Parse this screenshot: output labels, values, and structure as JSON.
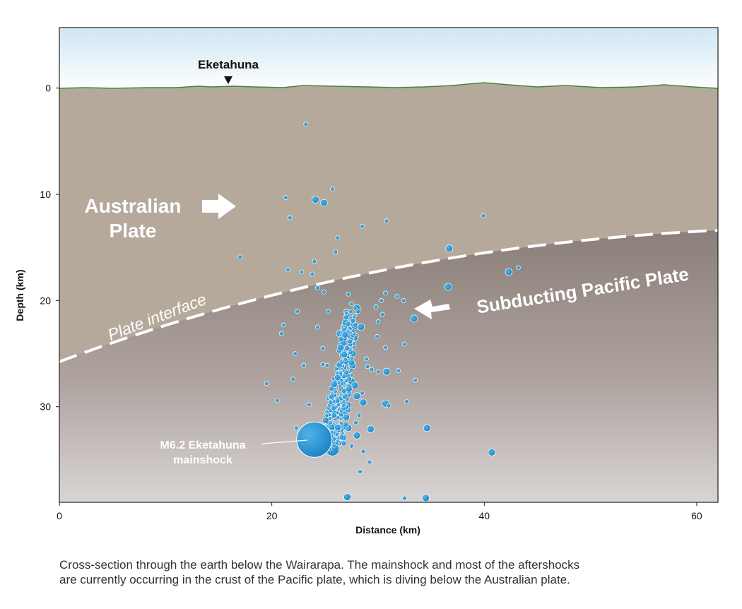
{
  "chart_data": {
    "type": "scatter",
    "xlabel": "Distance (km)",
    "ylabel": "Depth (km)",
    "xlim": [
      0,
      62
    ],
    "ylim": [
      39,
      -5.7
    ],
    "y_inverted": true,
    "x_ticks": [
      0,
      20,
      40,
      60
    ],
    "y_ticks": [
      0,
      10,
      20,
      30
    ],
    "grid": false,
    "legend": "none",
    "annotations": {
      "town": "Eketahuna",
      "upper_plate_line1": "Australian",
      "upper_plate_line2": "Plate",
      "lower_plate": "Subducting Pacific Plate",
      "interface": "Plate interface",
      "mainshock_line1": "M6.2 Eketahuna",
      "mainshock_line2": "mainshock"
    },
    "mainshock": {
      "x": 24.0,
      "y": 33.1,
      "magnitude": 6.2
    },
    "events": [
      [
        23.2,
        3.4,
        1
      ],
      [
        25.7,
        9.5,
        1
      ],
      [
        21.3,
        10.3,
        1
      ],
      [
        24.1,
        10.5,
        2
      ],
      [
        24.9,
        10.8,
        2
      ],
      [
        39.9,
        12.0,
        1
      ],
      [
        21.7,
        12.2,
        1
      ],
      [
        30.8,
        12.5,
        1
      ],
      [
        28.5,
        13.0,
        1
      ],
      [
        26.2,
        14.1,
        1
      ],
      [
        36.7,
        15.1,
        2
      ],
      [
        26.0,
        15.4,
        1
      ],
      [
        17.0,
        15.9,
        1
      ],
      [
        24.0,
        16.3,
        1
      ],
      [
        21.5,
        17.1,
        1
      ],
      [
        22.8,
        17.3,
        1
      ],
      [
        42.3,
        17.3,
        2
      ],
      [
        43.2,
        16.9,
        1
      ],
      [
        23.8,
        17.5,
        1
      ],
      [
        36.6,
        18.7,
        2
      ],
      [
        24.3,
        18.8,
        1
      ],
      [
        27.2,
        19.4,
        1
      ],
      [
        24.9,
        19.2,
        1
      ],
      [
        30.7,
        19.3,
        1
      ],
      [
        31.8,
        19.6,
        1
      ],
      [
        32.4,
        20.0,
        1
      ],
      [
        30.3,
        20.0,
        1
      ],
      [
        27.5,
        20.3,
        1
      ],
      [
        28.0,
        20.7,
        2
      ],
      [
        29.8,
        20.6,
        1
      ],
      [
        25.3,
        21.0,
        1
      ],
      [
        22.4,
        21.0,
        1
      ],
      [
        27.0,
        21.0,
        1
      ],
      [
        27.8,
        21.4,
        1
      ],
      [
        30.4,
        21.3,
        1
      ],
      [
        33.4,
        21.7,
        2
      ],
      [
        21.1,
        22.3,
        1
      ],
      [
        24.3,
        22.5,
        1
      ],
      [
        30.0,
        22.0,
        1
      ],
      [
        26.9,
        22.4,
        2
      ],
      [
        28.4,
        22.5,
        2
      ],
      [
        20.9,
        23.1,
        1
      ],
      [
        26.4,
        23.1,
        2
      ],
      [
        29.9,
        23.4,
        1
      ],
      [
        28.0,
        23.3,
        1
      ],
      [
        32.5,
        24.1,
        1
      ],
      [
        24.8,
        24.5,
        1
      ],
      [
        30.7,
        24.4,
        1
      ],
      [
        22.2,
        25.0,
        1
      ],
      [
        27.4,
        25.0,
        2
      ],
      [
        28.9,
        25.5,
        1
      ],
      [
        24.8,
        26.0,
        1
      ],
      [
        23.0,
        26.1,
        1
      ],
      [
        25.2,
        26.1,
        1
      ],
      [
        27.6,
        26.1,
        2
      ],
      [
        29.0,
        26.2,
        1
      ],
      [
        29.4,
        26.5,
        1
      ],
      [
        30.0,
        26.7,
        1
      ],
      [
        30.8,
        26.7,
        2
      ],
      [
        31.9,
        26.6,
        1
      ],
      [
        33.5,
        27.5,
        1
      ],
      [
        22.0,
        27.4,
        1
      ],
      [
        26.3,
        27.1,
        2
      ],
      [
        27.5,
        27.6,
        2
      ],
      [
        19.5,
        27.8,
        1
      ],
      [
        25.7,
        28.2,
        1
      ],
      [
        27.8,
        28.0,
        2
      ],
      [
        26.7,
        28.4,
        1
      ],
      [
        28.5,
        28.7,
        1
      ],
      [
        28.0,
        29.0,
        2
      ],
      [
        25.3,
        29.2,
        1
      ],
      [
        26.4,
        29.5,
        1
      ],
      [
        25.7,
        29.6,
        2
      ],
      [
        28.6,
        29.6,
        2
      ],
      [
        30.7,
        29.7,
        2
      ],
      [
        32.7,
        29.5,
        1
      ],
      [
        31.0,
        29.9,
        1
      ],
      [
        20.5,
        29.4,
        1
      ],
      [
        23.5,
        29.8,
        1
      ],
      [
        25.2,
        30.5,
        1
      ],
      [
        27.1,
        30.3,
        2
      ],
      [
        28.2,
        30.8,
        1
      ],
      [
        26.0,
        31.0,
        2
      ],
      [
        27.9,
        31.5,
        1
      ],
      [
        25.3,
        31.8,
        1
      ],
      [
        27.2,
        32.0,
        2
      ],
      [
        29.3,
        32.1,
        2
      ],
      [
        34.6,
        32.0,
        2
      ],
      [
        22.3,
        32.0,
        1
      ],
      [
        28.0,
        32.7,
        2
      ],
      [
        26.7,
        33.2,
        1
      ],
      [
        25.7,
        34.0,
        3
      ],
      [
        27.5,
        33.7,
        1
      ],
      [
        28.6,
        34.2,
        1
      ],
      [
        29.2,
        35.2,
        1
      ],
      [
        28.3,
        36.1,
        1
      ],
      [
        40.7,
        34.3,
        2
      ],
      [
        27.1,
        38.5,
        2
      ],
      [
        32.5,
        38.6,
        1
      ],
      [
        34.5,
        38.6,
        2
      ]
    ],
    "cluster_hint": "dense column of aftershocks between 24 and 29 km distance, 20 to 34 km depth"
  }
}
